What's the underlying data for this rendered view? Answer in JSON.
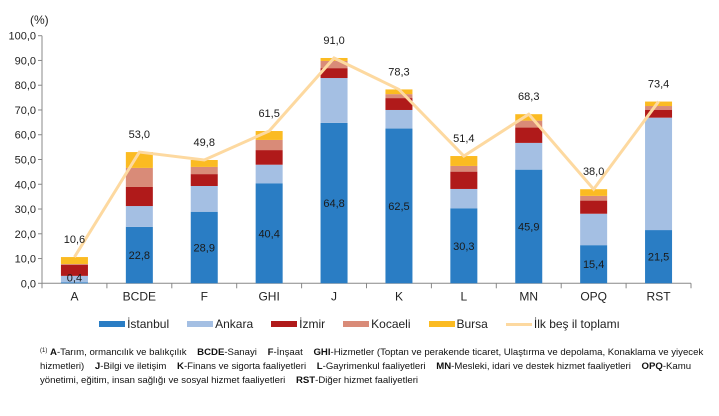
{
  "chart_data": {
    "type": "bar",
    "stacked": true,
    "ylabel": "(%)",
    "ylim": [
      0,
      100
    ],
    "yticks": [
      "0,0",
      "10,0",
      "20,0",
      "30,0",
      "40,0",
      "50,0",
      "60,0",
      "70,0",
      "80,0",
      "90,0",
      "100,0"
    ],
    "categories": [
      "A",
      "BCDE",
      "F",
      "GHI",
      "J",
      "K",
      "L",
      "MN",
      "OPQ",
      "RST"
    ],
    "series": [
      {
        "name": "İstanbul",
        "color": "#2a7dc4",
        "values": [
          0.4,
          22.8,
          28.9,
          40.4,
          64.8,
          62.5,
          30.3,
          45.9,
          15.4,
          21.5
        ],
        "labels": [
          "0,4",
          "22,8",
          "28,9",
          "40,4",
          "64,8",
          "62,5",
          "30,3",
          "45,9",
          "15,4",
          "21,5"
        ]
      },
      {
        "name": "Ankara",
        "color": "#a4bfe3",
        "values": [
          2.6,
          8.4,
          10.4,
          7.5,
          18.1,
          7.5,
          7.8,
          10.8,
          12.7,
          45.4
        ]
      },
      {
        "name": "İzmir",
        "color": "#b01a1a",
        "values": [
          4.5,
          7.7,
          4.8,
          5.9,
          4.0,
          4.8,
          7.0,
          6.2,
          5.3,
          3.2
        ]
      },
      {
        "name": "Kocaeli",
        "color": "#d98b78",
        "values": [
          0.3,
          7.7,
          2.9,
          4.1,
          2.9,
          1.6,
          2.3,
          2.8,
          1.9,
          1.5
        ]
      },
      {
        "name": "Bursa",
        "color": "#fbbb22",
        "values": [
          2.8,
          6.4,
          2.8,
          3.6,
          1.2,
          1.9,
          4.0,
          2.6,
          2.7,
          1.8
        ]
      }
    ],
    "line": {
      "name": "İlk beş il toplamı",
      "color": "#fdd9a0",
      "values": [
        10.6,
        53.0,
        49.8,
        61.5,
        91.0,
        78.3,
        51.4,
        68.3,
        38.0,
        73.4
      ],
      "labels": [
        "10,6",
        "53,0",
        "49,8",
        "61,5",
        "91,0",
        "78,3",
        "51,4",
        "68,3",
        "38,0",
        "73,4"
      ]
    },
    "legend_position": "bottom"
  },
  "footnote": {
    "marker": "(1)",
    "items": [
      {
        "code": "A",
        "text": "-Tarım, ormancılık ve balıkçılık"
      },
      {
        "code": "BCDE",
        "text": "-Sanayi"
      },
      {
        "code": "F",
        "text": "-İnşaat"
      },
      {
        "code": "GHI",
        "text": "-Hizmetler (Toptan ve perakende ticaret, Ulaştırma ve depolama, Konaklama ve yiyecek hizmetleri)"
      },
      {
        "code": "J",
        "text": "-Bilgi ve iletişim"
      },
      {
        "code": "K",
        "text": "-Finans ve sigorta faaliyetleri"
      },
      {
        "code": "L",
        "text": "-Gayrimenkul faaliyetleri"
      },
      {
        "code": "MN",
        "text": "-Mesleki, idari ve destek hizmet faaliyetleri"
      },
      {
        "code": "OPQ",
        "text": "-Kamu yönetimi, eğitim, insan sağlığı ve sosyal hizmet faaliyetleri"
      },
      {
        "code": "RST",
        "text": "-Diğer hizmet faaliyetleri"
      }
    ]
  }
}
